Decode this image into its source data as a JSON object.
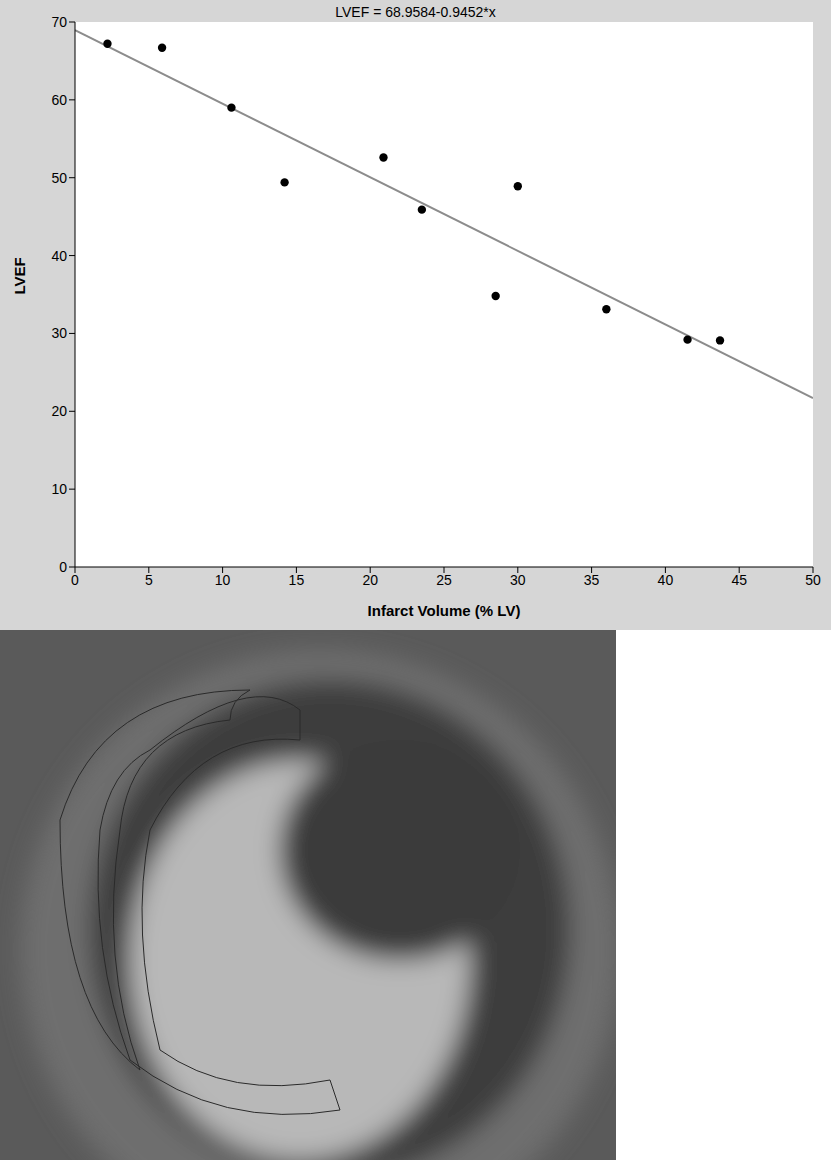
{
  "chart_data": {
    "type": "scatter",
    "title": "LVEF = 68.9584-0.9452*x",
    "x_label": "Infarct Volume (% LV)",
    "y_label": "LVEF",
    "xlim": [
      0,
      50
    ],
    "xticks": [
      0,
      5,
      10,
      15,
      20,
      25,
      30,
      35,
      40,
      45,
      50
    ],
    "ylim": [
      0,
      70
    ],
    "yticks": [
      0,
      10,
      20,
      30,
      40,
      50,
      60,
      70
    ],
    "grid": false,
    "series": [
      {
        "type": "scatter",
        "color": "#000000",
        "marker": "circle",
        "x": [
          2.2,
          5.9,
          10.6,
          14.2,
          20.9,
          23.5,
          28.5,
          30.0,
          36.0,
          41.5,
          43.7
        ],
        "values": [
          67.2,
          66.7,
          59.0,
          49.4,
          52.6,
          45.9,
          34.8,
          48.9,
          33.1,
          29.2,
          29.1
        ]
      },
      {
        "type": "line",
        "color": "#8c8c8c",
        "line_style": "solid",
        "x": [
          0,
          50
        ],
        "values": [
          68.9584,
          21.6984
        ]
      }
    ]
  }
}
